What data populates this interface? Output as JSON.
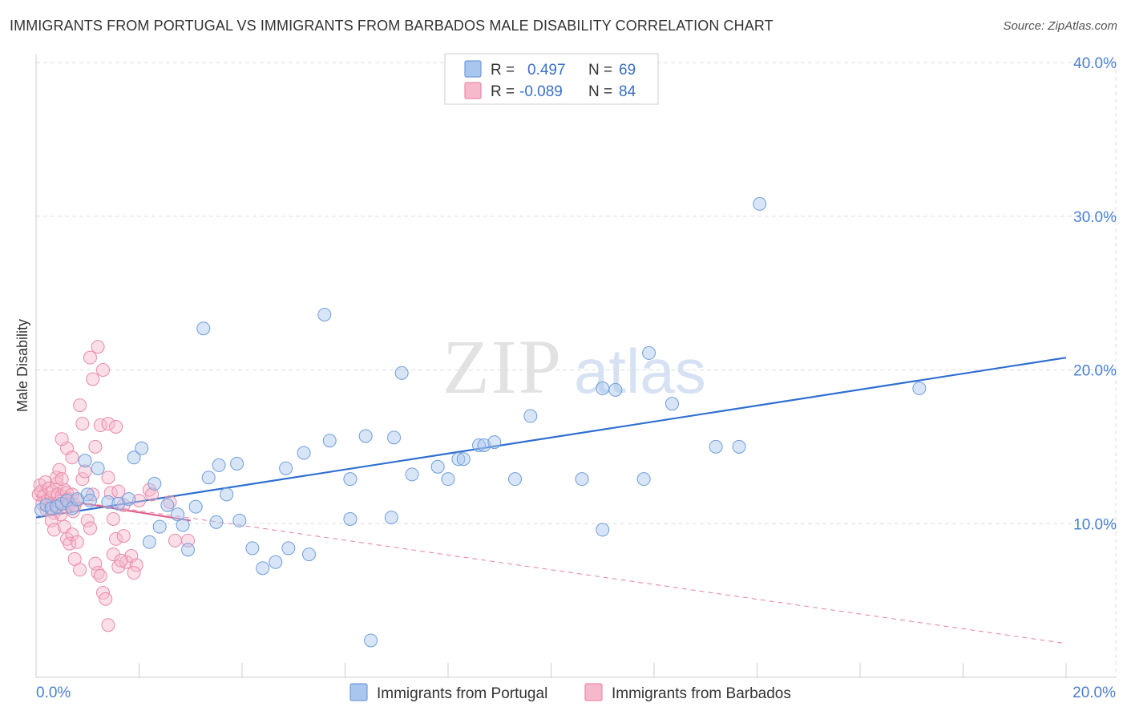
{
  "title": "IMMIGRANTS FROM PORTUGAL VS IMMIGRANTS FROM BARBADOS MALE DISABILITY CORRELATION CHART",
  "source": "Source: ZipAtlas.com",
  "watermark": {
    "zip": "ZIP",
    "atlas": "atlas"
  },
  "colors": {
    "portugal_fill": "#a9c6ee",
    "portugal_stroke": "#6f9ddb",
    "portugal_line": "#2f6fd0",
    "barbados_fill": "#f6b8cb",
    "barbados_stroke": "#e98aa8",
    "barbados_line": "#e0608a",
    "grid": "#dddddd",
    "axis_label": "#4a7fd0"
  },
  "stats_legend": {
    "rows": [
      {
        "r_label": "R =",
        "r_value": "0.497",
        "n_label": "N =",
        "n_value": "69",
        "series": "portugal"
      },
      {
        "r_label": "R =",
        "r_value": "-0.089",
        "n_label": "N =",
        "n_value": "84",
        "series": "barbados"
      }
    ]
  },
  "chart_data": {
    "type": "scatter",
    "title": "IMMIGRANTS FROM PORTUGAL VS IMMIGRANTS FROM BARBADOS MALE DISABILITY CORRELATION CHART",
    "xlabel": "",
    "ylabel": "Male Disability",
    "xlim": [
      0,
      20
    ],
    "ylim": [
      0,
      40
    ],
    "x_tick_labels": [
      {
        "value": 0,
        "label": "0.0%"
      },
      {
        "value": 20,
        "label": "20.0%"
      }
    ],
    "y_tick_labels": [
      {
        "value": 10,
        "label": "10.0%"
      },
      {
        "value": 20,
        "label": "20.0%"
      },
      {
        "value": 30,
        "label": "30.0%"
      },
      {
        "value": 40,
        "label": "40.0%"
      }
    ],
    "grid": true,
    "legend_position": "bottom",
    "series": [
      {
        "name": "Immigrants from Portugal",
        "color": "#6f9ddb",
        "trend": {
          "x": [
            0,
            20
          ],
          "y": [
            10.4,
            20.8
          ]
        },
        "points": [
          [
            0.1,
            10.9
          ],
          [
            0.2,
            11.2
          ],
          [
            0.3,
            11.0
          ],
          [
            0.4,
            11.1
          ],
          [
            0.5,
            11.3
          ],
          [
            0.6,
            11.5
          ],
          [
            0.7,
            11.0
          ],
          [
            0.8,
            11.6
          ],
          [
            1.0,
            11.9
          ],
          [
            1.2,
            13.6
          ],
          [
            0.95,
            14.1
          ],
          [
            1.05,
            11.5
          ],
          [
            1.4,
            11.4
          ],
          [
            1.6,
            11.3
          ],
          [
            1.8,
            11.6
          ],
          [
            1.9,
            14.3
          ],
          [
            2.05,
            14.9
          ],
          [
            2.2,
            8.8
          ],
          [
            2.3,
            12.6
          ],
          [
            2.4,
            9.8
          ],
          [
            2.55,
            11.2
          ],
          [
            2.75,
            10.6
          ],
          [
            2.85,
            9.9
          ],
          [
            2.95,
            8.3
          ],
          [
            3.1,
            11.1
          ],
          [
            3.25,
            22.7
          ],
          [
            3.35,
            13.0
          ],
          [
            3.5,
            10.1
          ],
          [
            3.55,
            13.8
          ],
          [
            3.7,
            11.9
          ],
          [
            3.9,
            13.9
          ],
          [
            3.95,
            10.2
          ],
          [
            4.2,
            8.4
          ],
          [
            4.4,
            7.1
          ],
          [
            4.65,
            7.5
          ],
          [
            4.85,
            13.6
          ],
          [
            4.9,
            8.4
          ],
          [
            5.2,
            14.6
          ],
          [
            5.3,
            8.0
          ],
          [
            5.6,
            23.6
          ],
          [
            5.7,
            15.4
          ],
          [
            6.1,
            12.9
          ],
          [
            6.1,
            10.3
          ],
          [
            6.4,
            15.7
          ],
          [
            6.5,
            2.4
          ],
          [
            6.9,
            10.4
          ],
          [
            6.95,
            15.6
          ],
          [
            7.1,
            19.8
          ],
          [
            7.3,
            13.2
          ],
          [
            7.8,
            13.7
          ],
          [
            8.0,
            12.9
          ],
          [
            8.2,
            14.2
          ],
          [
            8.3,
            14.2
          ],
          [
            8.6,
            15.1
          ],
          [
            8.7,
            15.1
          ],
          [
            8.9,
            15.3
          ],
          [
            9.3,
            12.9
          ],
          [
            9.6,
            17.0
          ],
          [
            10.6,
            12.9
          ],
          [
            11.0,
            18.8
          ],
          [
            11.0,
            9.6
          ],
          [
            11.25,
            18.7
          ],
          [
            11.8,
            12.9
          ],
          [
            11.9,
            21.1
          ],
          [
            12.35,
            17.8
          ],
          [
            13.2,
            15.0
          ],
          [
            13.65,
            15.0
          ],
          [
            14.05,
            30.8
          ],
          [
            17.15,
            18.8
          ]
        ]
      },
      {
        "name": "Immigrants from Barbados",
        "color": "#e98aa8",
        "trend": {
          "x": [
            0,
            3.0
          ],
          "y": [
            11.8,
            10.2
          ]
        },
        "trend_extended": {
          "x": [
            0,
            20
          ],
          "y": [
            11.8,
            2.2
          ]
        },
        "points": [
          [
            0.05,
            11.9
          ],
          [
            0.08,
            12.5
          ],
          [
            0.1,
            12.1
          ],
          [
            0.12,
            11.3
          ],
          [
            0.15,
            11.8
          ],
          [
            0.18,
            12.7
          ],
          [
            0.2,
            10.9
          ],
          [
            0.22,
            11.5
          ],
          [
            0.25,
            12.3
          ],
          [
            0.28,
            11.0
          ],
          [
            0.3,
            11.7
          ],
          [
            0.32,
            12.1
          ],
          [
            0.35,
            10.7
          ],
          [
            0.38,
            11.2
          ],
          [
            0.4,
            12.6
          ],
          [
            0.42,
            11.9
          ],
          [
            0.45,
            11.4
          ],
          [
            0.48,
            10.6
          ],
          [
            0.5,
            11.8
          ],
          [
            0.55,
            12.2
          ],
          [
            0.58,
            11.1
          ],
          [
            0.6,
            12.0
          ],
          [
            0.62,
            11.6
          ],
          [
            0.65,
            11.3
          ],
          [
            0.7,
            11.9
          ],
          [
            0.72,
            10.8
          ],
          [
            0.75,
            11.2
          ],
          [
            0.8,
            11.5
          ],
          [
            0.3,
            10.2
          ],
          [
            0.35,
            9.6
          ],
          [
            0.4,
            13.0
          ],
          [
            0.45,
            13.5
          ],
          [
            0.5,
            12.9
          ],
          [
            0.55,
            9.8
          ],
          [
            0.6,
            9.0
          ],
          [
            0.65,
            8.7
          ],
          [
            0.7,
            9.3
          ],
          [
            0.75,
            7.7
          ],
          [
            0.8,
            8.8
          ],
          [
            0.85,
            7.0
          ],
          [
            0.9,
            12.9
          ],
          [
            0.95,
            13.4
          ],
          [
            1.0,
            10.2
          ],
          [
            1.05,
            9.7
          ],
          [
            1.1,
            11.9
          ],
          [
            1.15,
            7.4
          ],
          [
            1.2,
            6.8
          ],
          [
            1.25,
            6.6
          ],
          [
            1.3,
            5.5
          ],
          [
            1.35,
            5.1
          ],
          [
            1.4,
            3.4
          ],
          [
            1.45,
            12.0
          ],
          [
            0.6,
            14.9
          ],
          [
            0.7,
            14.3
          ],
          [
            0.5,
            15.5
          ],
          [
            0.9,
            16.5
          ],
          [
            0.85,
            17.7
          ],
          [
            1.1,
            19.4
          ],
          [
            1.3,
            20.0
          ],
          [
            1.25,
            16.4
          ],
          [
            1.15,
            15.0
          ],
          [
            1.4,
            16.5
          ],
          [
            1.05,
            20.8
          ],
          [
            1.2,
            21.5
          ],
          [
            1.55,
            16.3
          ],
          [
            1.4,
            13.0
          ],
          [
            1.6,
            12.1
          ],
          [
            1.7,
            11.2
          ],
          [
            1.5,
            10.3
          ],
          [
            1.55,
            9.0
          ],
          [
            1.7,
            9.2
          ],
          [
            1.5,
            8.0
          ],
          [
            1.6,
            7.2
          ],
          [
            1.75,
            7.5
          ],
          [
            1.85,
            7.9
          ],
          [
            1.95,
            7.3
          ],
          [
            2.0,
            11.5
          ],
          [
            2.2,
            12.2
          ],
          [
            2.25,
            11.9
          ],
          [
            2.6,
            11.4
          ],
          [
            2.7,
            8.9
          ],
          [
            2.95,
            8.9
          ],
          [
            1.65,
            7.6
          ],
          [
            1.9,
            6.8
          ]
        ]
      }
    ]
  }
}
